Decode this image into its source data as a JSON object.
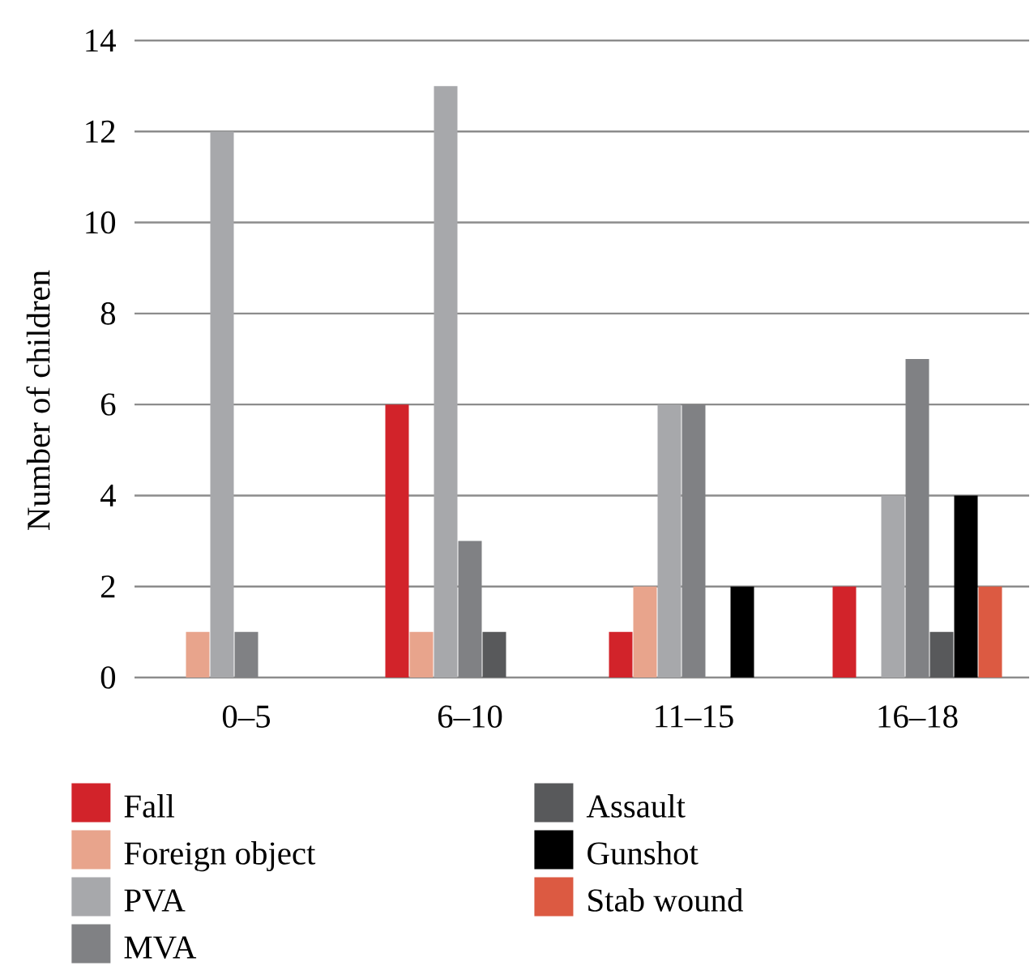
{
  "chart_data": {
    "type": "bar",
    "ylabel": "Number of children",
    "categories": [
      "0–5",
      "6–10",
      "11–15",
      "16–18"
    ],
    "series": [
      {
        "name": "Fall",
        "color": "#d2232a",
        "values": [
          0,
          6,
          1,
          2
        ]
      },
      {
        "name": "Foreign object",
        "color": "#e8a48c",
        "values": [
          1,
          1,
          2,
          0
        ]
      },
      {
        "name": "PVA",
        "color": "#a7a8ab",
        "values": [
          12,
          13,
          6,
          4
        ]
      },
      {
        "name": "MVA",
        "color": "#808184",
        "values": [
          1,
          3,
          6,
          7
        ]
      },
      {
        "name": "Assault",
        "color": "#58595b",
        "values": [
          0,
          1,
          0,
          1
        ]
      },
      {
        "name": "Gunshot",
        "color": "#000000",
        "values": [
          0,
          0,
          2,
          4
        ]
      },
      {
        "name": "Stab wound",
        "color": "#dc5a42",
        "values": [
          0,
          0,
          0,
          2
        ]
      }
    ],
    "ylim": [
      0,
      14
    ],
    "yticks": [
      0,
      2,
      4,
      6,
      8,
      10,
      12,
      14
    ],
    "grid": "y",
    "legend": "bottom"
  }
}
